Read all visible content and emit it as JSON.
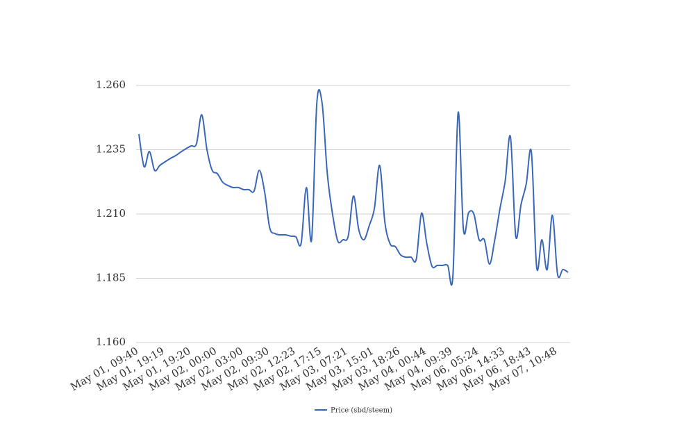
{
  "chart_data": {
    "type": "line",
    "categories": [
      "May 01, 09:40",
      null,
      null,
      null,
      null,
      "May 01, 19:19",
      null,
      null,
      null,
      null,
      "May 01, 19:20",
      null,
      null,
      null,
      null,
      "May 02, 00:00",
      null,
      null,
      null,
      null,
      "May 02, 03:00",
      null,
      null,
      null,
      null,
      "May 02, 09:30",
      null,
      null,
      null,
      null,
      "May 02, 12:23",
      null,
      null,
      null,
      null,
      "May 02, 17:15",
      null,
      null,
      null,
      null,
      "May 03, 07:21",
      null,
      null,
      null,
      null,
      "May 03, 15:01",
      null,
      null,
      null,
      null,
      "May 03, 18:26",
      null,
      null,
      null,
      null,
      "May 04, 00:44",
      null,
      null,
      null,
      null,
      "May 04, 09:39",
      null,
      null,
      null,
      null,
      "May 06, 05:24",
      null,
      null,
      null,
      null,
      "May 06, 14:33",
      null,
      null,
      null,
      null,
      "May 06, 18:43",
      null,
      null,
      null,
      null,
      "May 07, 10:48",
      null,
      null
    ],
    "series": [
      {
        "name": "Price (sbd/steem)",
        "color": "#3a66b8",
        "values": [
          1.2411,
          1.2284,
          1.2343,
          1.227,
          1.2289,
          1.2303,
          1.2316,
          1.2327,
          1.2341,
          1.2354,
          1.2365,
          1.2373,
          1.2486,
          1.2351,
          1.227,
          1.2257,
          1.2224,
          1.2211,
          1.2203,
          1.2203,
          1.2195,
          1.2195,
          1.2189,
          1.227,
          1.2189,
          1.2046,
          1.2024,
          1.2019,
          1.2019,
          1.2014,
          1.2011,
          1.1986,
          1.2203,
          1.2,
          1.2532,
          1.2532,
          1.2257,
          1.21,
          1.1995,
          1.2,
          1.2014,
          1.217,
          1.204,
          1.2,
          1.2054,
          1.2122,
          1.2289,
          1.2068,
          1.1984,
          1.1973,
          1.1941,
          1.1932,
          1.1932,
          1.1924,
          1.2103,
          1.1986,
          1.1897,
          1.19,
          1.19,
          1.19,
          1.186,
          1.2495,
          1.2041,
          1.2105,
          1.21,
          1.2,
          1.2,
          1.1905,
          1.2,
          1.2122,
          1.223,
          1.24,
          1.2014,
          1.2135,
          1.2216,
          1.234,
          1.1892,
          1.2,
          1.1884,
          1.2095,
          1.1865,
          1.1884,
          1.1873
        ]
      }
    ],
    "ylim": [
      1.16,
      1.26
    ],
    "yticks": [
      {
        "value": 1.16,
        "label": "1.160"
      },
      {
        "value": 1.185,
        "label": "1.185"
      },
      {
        "value": 1.21,
        "label": "1.210"
      },
      {
        "value": 1.235,
        "label": "1.235"
      },
      {
        "value": 1.26,
        "label": "1.260"
      }
    ],
    "grid": true,
    "legend": "bottom"
  }
}
